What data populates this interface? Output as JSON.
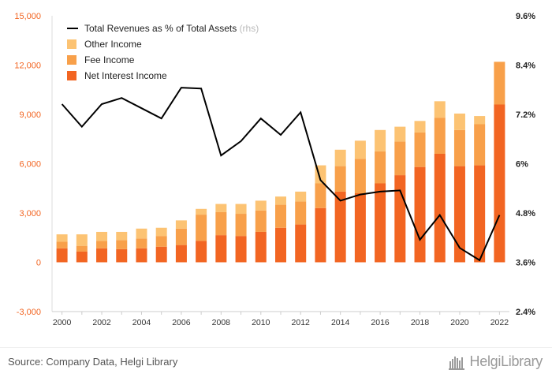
{
  "chart_data": {
    "type": "bar",
    "stacked": true,
    "categories": [
      "2000",
      "2001",
      "2002",
      "2003",
      "2004",
      "2005",
      "2006",
      "2007",
      "2008",
      "2009",
      "2010",
      "2011",
      "2012",
      "2013",
      "2014",
      "2015",
      "2016",
      "2017",
      "2018",
      "2019",
      "2020",
      "2021",
      "2022"
    ],
    "x_tick_labels": [
      "2000",
      "2002",
      "2004",
      "2006",
      "2008",
      "2010",
      "2012",
      "2014",
      "2016",
      "2018",
      "2020",
      "2022"
    ],
    "series": [
      {
        "name": "Net Interest Income",
        "color": "#f26522",
        "values": [
          850,
          650,
          850,
          800,
          850,
          950,
          1050,
          1300,
          1650,
          1600,
          1850,
          2100,
          2300,
          3300,
          4300,
          4200,
          4800,
          5300,
          5800,
          6600,
          5850,
          5900,
          9600
        ]
      },
      {
        "name": "Fee Income",
        "color": "#f8a04a",
        "values": [
          400,
          350,
          450,
          550,
          600,
          650,
          1000,
          1600,
          1400,
          1350,
          1300,
          1400,
          1400,
          1500,
          1550,
          2100,
          1950,
          2050,
          2100,
          2200,
          2200,
          2500,
          2600
        ]
      },
      {
        "name": "Other Income",
        "color": "#fcc373",
        "values": [
          450,
          700,
          550,
          500,
          600,
          500,
          500,
          350,
          500,
          600,
          600,
          500,
          600,
          1100,
          1000,
          1100,
          1300,
          900,
          700,
          1000,
          1000,
          500,
          0
        ]
      }
    ],
    "line_series": {
      "name": "Total Revenues as % of Total Assets",
      "suffix": "(rhs)",
      "axis": "right",
      "color": "#000000",
      "values": [
        7.45,
        6.9,
        7.45,
        7.6,
        7.35,
        7.1,
        7.85,
        7.83,
        6.2,
        6.55,
        7.1,
        6.7,
        7.25,
        5.6,
        5.1,
        5.25,
        5.32,
        5.35,
        4.15,
        4.75,
        3.95,
        3.65,
        4.75
      ]
    },
    "y_left": {
      "min": -3000,
      "max": 15000,
      "ticks": [
        "15,000",
        "12,000",
        "9,000",
        "6,000",
        "3,000",
        "0",
        "-3,000"
      ],
      "tick_values": [
        15000,
        12000,
        9000,
        6000,
        3000,
        0,
        -3000
      ]
    },
    "y_right": {
      "min": 2.4,
      "max": 9.6,
      "ticks": [
        "9.6%",
        "8.4%",
        "7.2%",
        "6%",
        "4.8%",
        "3.6%",
        "2.4%"
      ],
      "tick_values": [
        9.6,
        8.4,
        7.2,
        6.0,
        4.8,
        3.6,
        2.4
      ]
    },
    "legend_placement": "top-left",
    "grid": false
  },
  "footer": {
    "source": "Source: Company Data, Helgi Library",
    "logo_text": "HelgiLibrary"
  }
}
